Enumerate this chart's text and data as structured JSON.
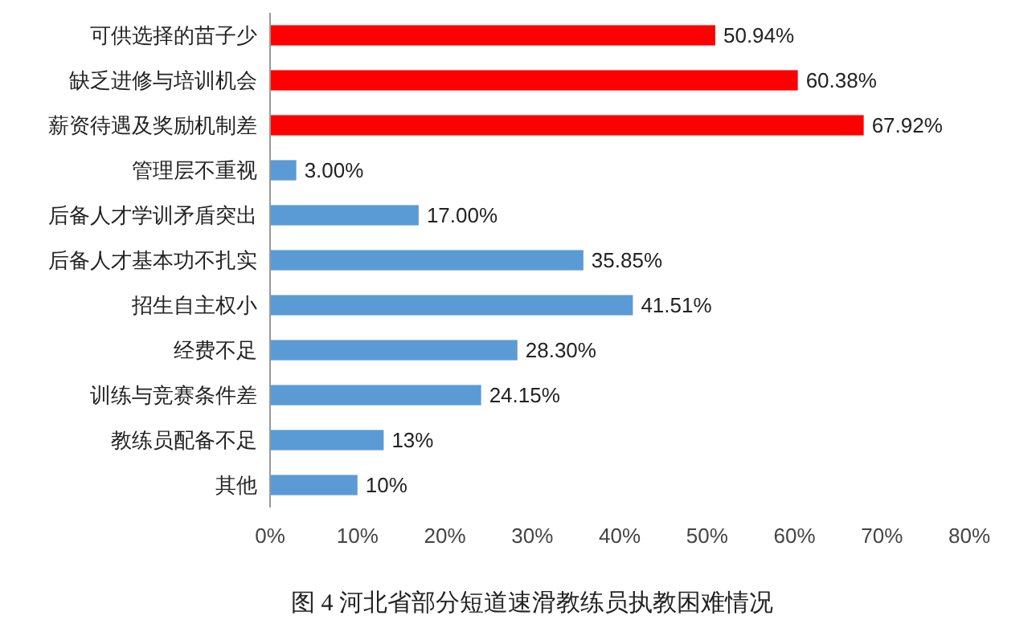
{
  "chart_data": {
    "type": "bar",
    "orientation": "horizontal",
    "title": "图 4 河北省部分短道速滑教练员执教困难情况",
    "categories": [
      "可供选择的苗子少",
      "缺乏进修与培训机会",
      "薪资待遇及奖励机制差",
      "管理层不重视",
      "后备人才学训矛盾突出",
      "后备人才基本功不扎实",
      "招生自主权小",
      "经费不足",
      "训练与竞赛条件差",
      "教练员配备不足",
      "其他"
    ],
    "values": [
      50.94,
      60.38,
      67.92,
      3.0,
      17.0,
      35.85,
      41.51,
      28.3,
      24.15,
      13,
      10
    ],
    "colors": [
      "#ff0000",
      "#ff0000",
      "#ff0000",
      "#5b9bd5",
      "#5b9bd5",
      "#5b9bd5",
      "#5b9bd5",
      "#5b9bd5",
      "#5b9bd5",
      "#5b9bd5",
      "#5b9bd5"
    ],
    "value_labels": [
      "50.94%",
      "60.38%",
      "67.92%",
      "3.00%",
      "17.00%",
      "35.85%",
      "41.51%",
      "28.30%",
      "24.15%",
      "13%",
      "10%"
    ],
    "xlim": [
      0,
      80
    ],
    "xticks": [
      {
        "value": 0,
        "label": "0%"
      },
      {
        "value": 10,
        "label": "10%"
      },
      {
        "value": 20,
        "label": "20%"
      },
      {
        "value": 30,
        "label": "30%"
      },
      {
        "value": 40,
        "label": "40%"
      },
      {
        "value": 50,
        "label": "50%"
      },
      {
        "value": 60,
        "label": "60%"
      },
      {
        "value": 70,
        "label": "70%"
      },
      {
        "value": 80,
        "label": "80%"
      }
    ]
  }
}
